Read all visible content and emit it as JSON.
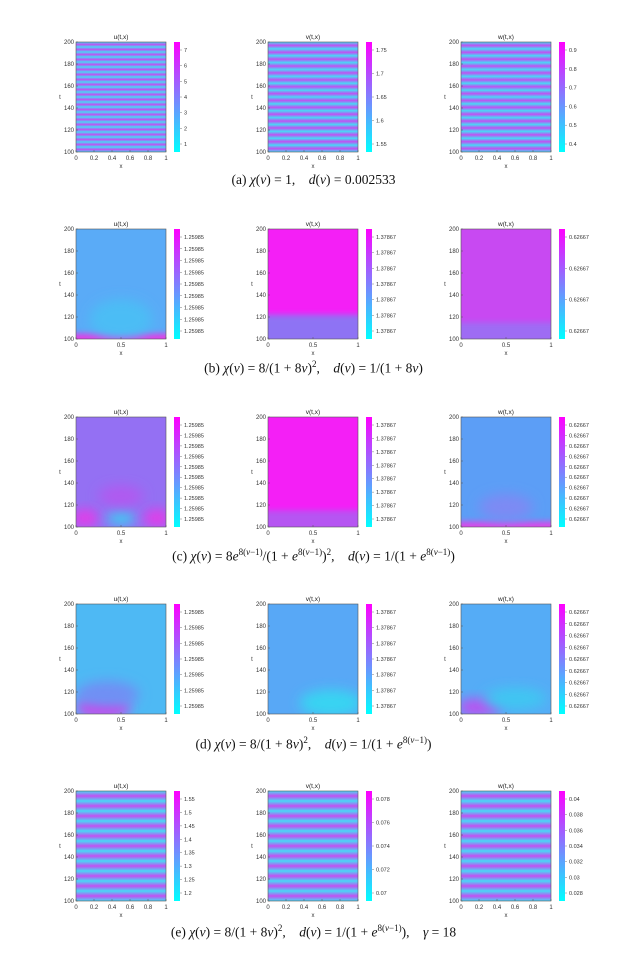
{
  "rows": [
    {
      "caption_html": "(a) <i>χ</i>(<i>v</i>) = 1, &nbsp;&nbsp; <i>d</i>(<i>v</i>) = 0.002533",
      "xticks": [
        "0",
        "0.2",
        "0.4",
        "0.6",
        "0.8",
        "1"
      ],
      "pattern": "stripes",
      "panels": [
        {
          "title": "u(t,x)",
          "cbticks": [
            "7",
            "6",
            "5",
            "4",
            "3",
            "2",
            "1"
          ],
          "stripes": 22,
          "bands": [],
          "blobs": []
        },
        {
          "title": "v(t,x)",
          "cbticks": [
            "1.75",
            "1.7",
            "1.65",
            "1.6",
            "1.55"
          ],
          "stripes": 16,
          "bands": [],
          "blobs": []
        },
        {
          "title": "w(t,x)",
          "cbticks": [
            "0.9",
            "0.8",
            "0.7",
            "0.6",
            "0.5",
            "0.4"
          ],
          "stripes": 16,
          "bands": [],
          "blobs": []
        }
      ]
    },
    {
      "caption_html": "(b) <i>χ</i>(<i>v</i>) = 8/(1 + 8<i>v</i>)<sup>2</sup>, &nbsp;&nbsp; <i>d</i>(<i>v</i>) = 1/(1 + 8<i>v</i>)",
      "xticks": [
        "0",
        "0.5",
        "1"
      ],
      "pattern": "smooth",
      "panels": [
        {
          "title": "u(t,x)",
          "cbticks": [
            "1.25985",
            "1.25985",
            "1.25985",
            "1.25985",
            "1.25985",
            "1.25985",
            "1.25985",
            "1.25985",
            "1.25985"
          ],
          "base": "#5aabf7",
          "bands": [
            {
              "from": 0.95,
              "to": 1.0,
              "color": "#e040e8"
            }
          ],
          "blobs": [
            {
              "x": 0.5,
              "y": 0.82,
              "rx": 0.35,
              "ry": 0.18,
              "color": "#4bbdf5"
            }
          ]
        },
        {
          "title": "v(t,x)",
          "cbticks": [
            "1.37867",
            "1.37867",
            "1.37867",
            "1.37867",
            "1.37867",
            "1.37867",
            "1.37867"
          ],
          "base": "#f41ff6",
          "bands": [
            {
              "from": 0.78,
              "to": 1.0,
              "color": "#8e73f4"
            }
          ],
          "blobs": []
        },
        {
          "title": "w(t,x)",
          "cbticks": [
            "0.62667",
            "0.62667",
            "0.62667",
            "0.62667"
          ],
          "base": "#c849f2",
          "bands": [
            {
              "from": 0.85,
              "to": 1.0,
              "color": "#9e6cf4"
            }
          ],
          "blobs": []
        }
      ]
    },
    {
      "caption_html": "(c) <i>χ</i>(<i>v</i>) = 8<i>e</i><sup>8(<i>v</i>−1)</sup>/(1 + <i>e</i><sup>8(<i>v</i>−1)</sup>)<sup>2</sup>, &nbsp;&nbsp; <i>d</i>(<i>v</i>) = 1/(1 + <i>e</i><sup>8(<i>v</i>−1)</sup>)",
      "xticks": [
        "0",
        "0.5",
        "1"
      ],
      "pattern": "smooth",
      "panels": [
        {
          "title": "u(t,x)",
          "cbticks": [
            "1.25985",
            "1.25985",
            "1.25985",
            "1.25985",
            "1.25985",
            "1.25985",
            "1.25985",
            "1.25985",
            "1.25985",
            "1.25985"
          ],
          "base": "#9470f3",
          "bands": [],
          "blobs": [
            {
              "x": 0.1,
              "y": 0.92,
              "rx": 0.15,
              "ry": 0.08,
              "color": "#e43ae8"
            },
            {
              "x": 0.5,
              "y": 0.92,
              "rx": 0.16,
              "ry": 0.07,
              "color": "#40c8f2"
            },
            {
              "x": 0.9,
              "y": 0.92,
              "rx": 0.15,
              "ry": 0.08,
              "color": "#e43ae8"
            },
            {
              "x": 0.5,
              "y": 0.72,
              "rx": 0.25,
              "ry": 0.1,
              "color": "#b05af0"
            }
          ]
        },
        {
          "title": "v(t,x)",
          "cbticks": [
            "1.37867",
            "1.37867",
            "1.37867",
            "1.37867",
            "1.37867",
            "1.37867",
            "1.37867",
            "1.37867"
          ],
          "base": "#f41ff6",
          "bands": [
            {
              "from": 0.85,
              "to": 1.0,
              "color": "#b655f2"
            }
          ],
          "blobs": []
        },
        {
          "title": "w(t,x)",
          "cbticks": [
            "0.62667",
            "0.62667",
            "0.62667",
            "0.62667",
            "0.62667",
            "0.62667",
            "0.62667",
            "0.62667",
            "0.62667",
            "0.62667"
          ],
          "base": "#5c9ef6",
          "bands": [
            {
              "from": 0.95,
              "to": 1.0,
              "color": "#d848ea"
            }
          ],
          "blobs": [
            {
              "x": 0.5,
              "y": 0.82,
              "rx": 0.3,
              "ry": 0.12,
              "color": "#7d8af4"
            }
          ]
        }
      ]
    },
    {
      "caption_html": "(d) <i>χ</i>(<i>v</i>) = 8/(1 + 8<i>v</i>)<sup>2</sup>, &nbsp;&nbsp; <i>d</i>(<i>v</i>) = 1/(1 + <i>e</i><sup>8(<i>v</i>−1)</sup>)",
      "xticks": [
        "0",
        "0.5",
        "1"
      ],
      "pattern": "smooth",
      "panels": [
        {
          "title": "u(t,x)",
          "cbticks": [
            "1.25985",
            "1.25985",
            "1.25985",
            "1.25985",
            "1.25985",
            "1.25985",
            "1.25985"
          ],
          "base": "#4eb9f4",
          "bands": [],
          "blobs": [
            {
              "x": 0.3,
              "y": 0.94,
              "rx": 0.3,
              "ry": 0.1,
              "color": "#d440ea"
            },
            {
              "x": 0.35,
              "y": 0.82,
              "rx": 0.35,
              "ry": 0.12,
              "color": "#7090f4"
            }
          ]
        },
        {
          "title": "v(t,x)",
          "cbticks": [
            "1.37867",
            "1.37867",
            "1.37867",
            "1.37867",
            "1.37867",
            "1.37867",
            "1.37867"
          ],
          "base": "#58a8f6",
          "bands": [],
          "blobs": [
            {
              "x": 0.7,
              "y": 0.9,
              "rx": 0.35,
              "ry": 0.12,
              "color": "#38d4f2"
            }
          ]
        },
        {
          "title": "w(t,x)",
          "cbticks": [
            "0.62667",
            "0.62667",
            "0.62667",
            "0.62667",
            "0.62667",
            "0.62667",
            "0.62667",
            "0.62667",
            "0.62667"
          ],
          "base": "#55acf6",
          "bands": [],
          "blobs": [
            {
              "x": 0.2,
              "y": 0.94,
              "rx": 0.25,
              "ry": 0.08,
              "color": "#c04ef0"
            },
            {
              "x": 0.6,
              "y": 0.86,
              "rx": 0.35,
              "ry": 0.1,
              "color": "#40c6f2"
            }
          ]
        }
      ]
    },
    {
      "caption_html": "(e) <i>χ</i>(<i>v</i>) = 8/(1 + 8<i>v</i>)<sup>2</sup>, &nbsp;&nbsp; <i>d</i>(<i>v</i>) = 1/(1 + <i>e</i><sup>8(<i>v</i>−1)</sup>), &nbsp;&nbsp; <i>γ</i> = 18",
      "xticks": [
        "0",
        "0.2",
        "0.4",
        "0.6",
        "0.8",
        "1"
      ],
      "pattern": "stripes",
      "panels": [
        {
          "title": "u(t,x)",
          "cbticks": [
            "1.55",
            "1.5",
            "1.45",
            "1.4",
            "1.35",
            "1.3",
            "1.25",
            "1.2"
          ],
          "stripes": 11,
          "bands": [],
          "blobs": []
        },
        {
          "title": "v(t,x)",
          "cbticks": [
            "0.078",
            "0.076",
            "0.074",
            "0.072",
            "0.07"
          ],
          "stripes": 11,
          "bands": [],
          "blobs": []
        },
        {
          "title": "w(t,x)",
          "cbticks": [
            "0.04",
            "0.038",
            "0.036",
            "0.034",
            "0.032",
            "0.03",
            "0.028"
          ],
          "stripes": 11,
          "bands": [],
          "blobs": []
        }
      ]
    }
  ],
  "yticks": [
    "200",
    "180",
    "160",
    "140",
    "120",
    "100"
  ],
  "xlabel": "x",
  "ylabel": "t",
  "colors": {
    "low": "#00ffff",
    "high": "#ff00ff"
  }
}
